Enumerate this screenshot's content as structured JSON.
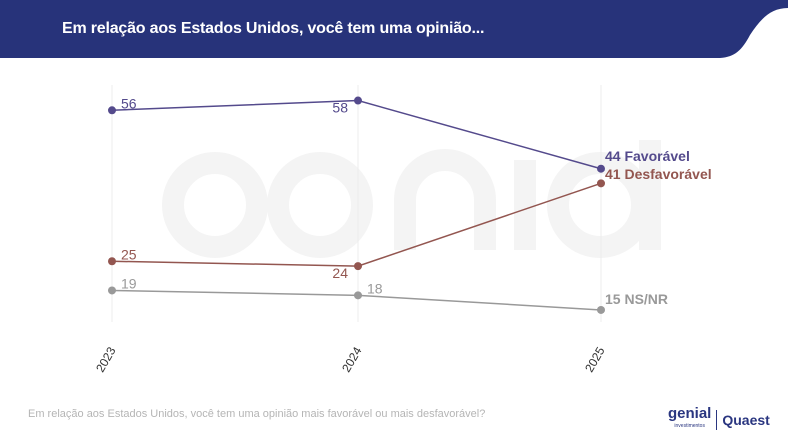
{
  "header": {
    "title": "Em relação aos Estados Unidos, você tem uma opinião..."
  },
  "footer": {
    "question": "Em relação aos Estados Unidos, você tem uma opinião mais favorável ou mais desfavorável?"
  },
  "logos": {
    "genial": "genial",
    "genial_sub": "investimentos",
    "quaest": "Quaest"
  },
  "watermark": {
    "main": "genial",
    "sub": "investimentos"
  },
  "colors": {
    "header": "#27337a",
    "favoravel": "#544a8c",
    "desfavoravel": "#935650",
    "nsnr": "#999999"
  },
  "chart_data": {
    "type": "line",
    "title": "Em relação aos Estados Unidos, você tem uma opinião...",
    "categories": [
      "2023",
      "2024",
      "2025"
    ],
    "series": [
      {
        "name": "Favorável",
        "end_label": "44 Favorável",
        "values": [
          56,
          58,
          44
        ],
        "color": "#544a8c"
      },
      {
        "name": "Desfavorável",
        "end_label": "41 Desfavorável",
        "values": [
          25,
          24,
          41
        ],
        "color": "#935650"
      },
      {
        "name": "NS/NR",
        "end_label": "15 NS/NR",
        "values": [
          19,
          18,
          15
        ],
        "color": "#999999"
      }
    ],
    "grid": "vertical"
  }
}
